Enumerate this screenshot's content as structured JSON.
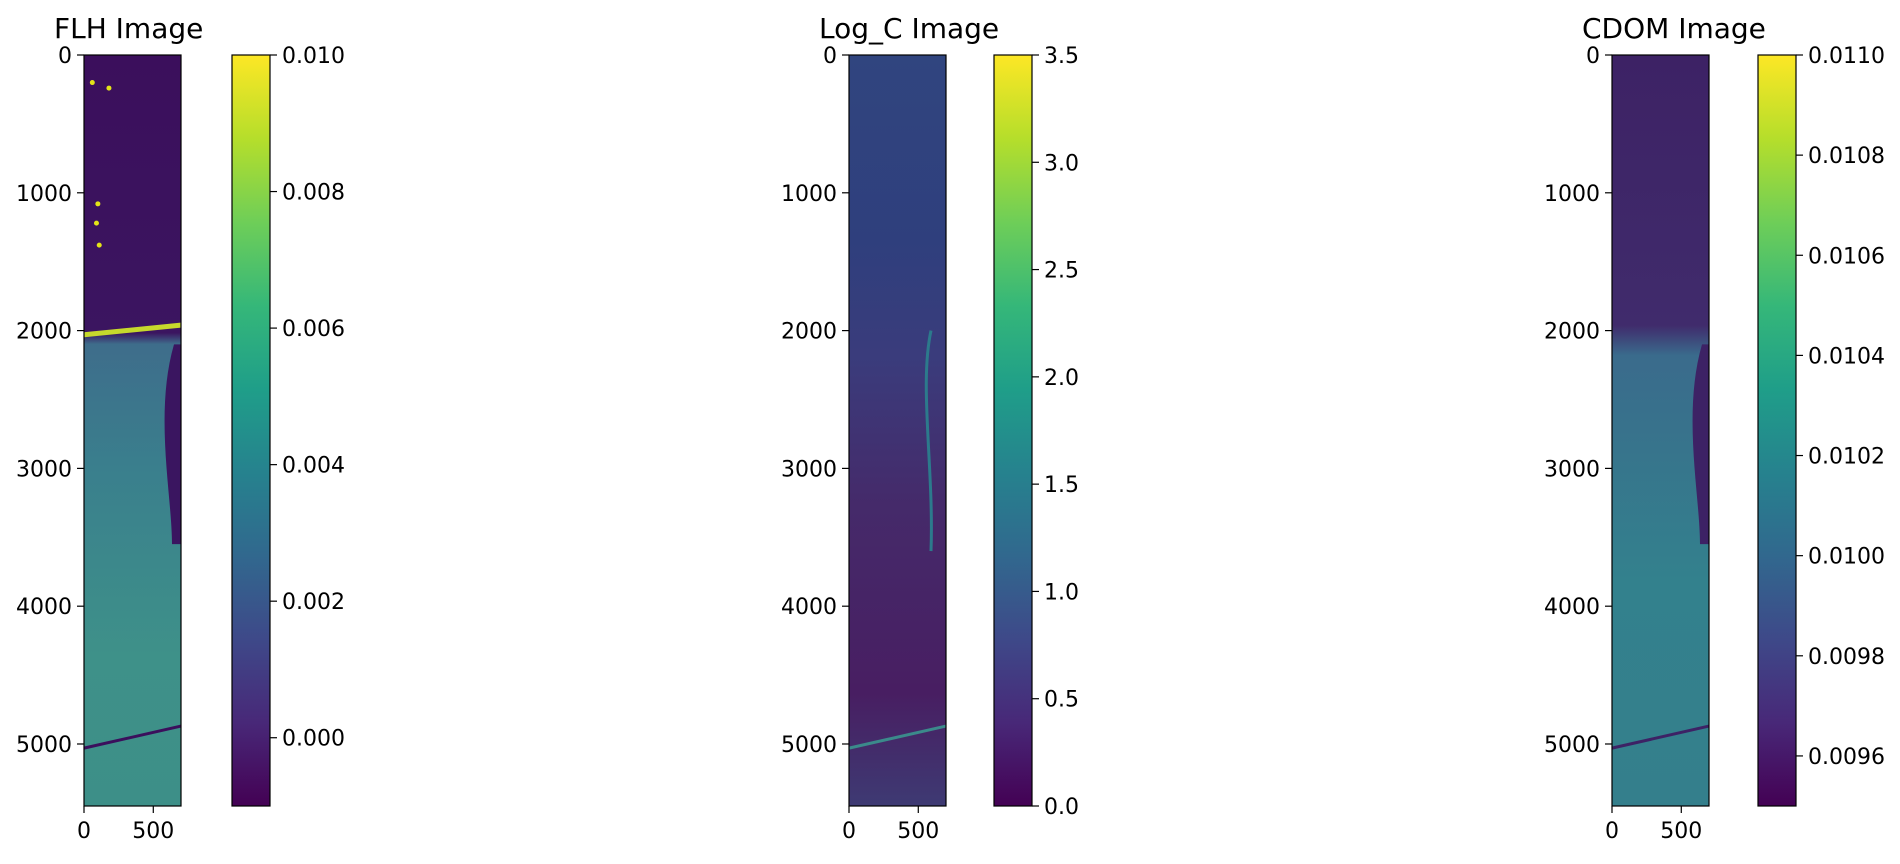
{
  "chart_data": [
    {
      "type": "heatmap",
      "title": "FLH Image",
      "xticks": [
        0,
        500
      ],
      "xlim": [
        0,
        700
      ],
      "yticks": [
        0,
        1000,
        2000,
        3000,
        4000,
        5000
      ],
      "ylim": [
        0,
        5450
      ],
      "colorbar": {
        "ticks": [
          "0.000",
          "0.002",
          "0.004",
          "0.006",
          "0.008",
          "0.010"
        ],
        "min": -0.001,
        "max": 0.01
      },
      "colormap": "viridis"
    },
    {
      "type": "heatmap",
      "title": "Log_C Image",
      "xticks": [
        0,
        500
      ],
      "xlim": [
        0,
        700
      ],
      "yticks": [
        0,
        1000,
        2000,
        3000,
        4000,
        5000
      ],
      "ylim": [
        0,
        5450
      ],
      "colorbar": {
        "ticks": [
          "0.0",
          "0.5",
          "1.0",
          "1.5",
          "2.0",
          "2.5",
          "3.0",
          "3.5"
        ],
        "min": 0.0,
        "max": 3.5
      },
      "colormap": "viridis"
    },
    {
      "type": "heatmap",
      "title": "CDOM Image",
      "xticks": [
        0,
        500
      ],
      "xlim": [
        0,
        700
      ],
      "yticks": [
        0,
        1000,
        2000,
        3000,
        4000,
        5000
      ],
      "ylim": [
        0,
        5450
      ],
      "colorbar": {
        "ticks": [
          "0.0096",
          "0.0098",
          "0.0100",
          "0.0102",
          "0.0104",
          "0.0106",
          "0.0108",
          "0.0110"
        ],
        "min": 0.0095,
        "max": 0.011
      },
      "colormap": "viridis"
    }
  ],
  "colors": {
    "viridis": [
      "#440154",
      "#482878",
      "#3e4989",
      "#31688e",
      "#26828e",
      "#1f9e89",
      "#35b779",
      "#6ece58",
      "#b5de2b",
      "#fde725"
    ]
  }
}
